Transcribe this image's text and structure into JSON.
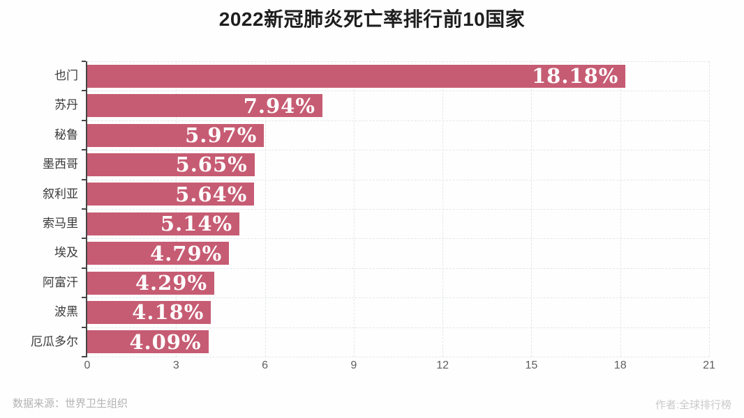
{
  "title": "2022新冠肺炎死亡率排行前10国家",
  "chart_data": {
    "type": "bar",
    "orientation": "horizontal",
    "title": "2022新冠肺炎死亡率排行前10国家",
    "categories": [
      "也门",
      "苏丹",
      "秘鲁",
      "墨西哥",
      "叙利亚",
      "索马里",
      "埃及",
      "阿富汗",
      "波黑",
      "厄瓜多尔"
    ],
    "values": [
      18.18,
      7.94,
      5.97,
      5.65,
      5.64,
      5.14,
      4.79,
      4.29,
      4.18,
      4.09
    ],
    "value_labels": [
      "18.18%",
      "7.94%",
      "5.97%",
      "5.65%",
      "5.64%",
      "5.14%",
      "4.79%",
      "4.29%",
      "4.18%",
      "4.09%"
    ],
    "xlabel": "",
    "ylabel": "",
    "xlim": [
      0,
      21
    ],
    "xticks": [
      0,
      3,
      6,
      9,
      12,
      15,
      18,
      21
    ],
    "grid": "dashed",
    "legend": "none",
    "bar_color": "#c65c73",
    "value_label_color": "#ffffff",
    "axis_color": "#454545",
    "grid_color": "#e2e6e9"
  },
  "footer": {
    "source": "数据来源：世界卫生组织",
    "author": "作者:全球排行榜"
  }
}
